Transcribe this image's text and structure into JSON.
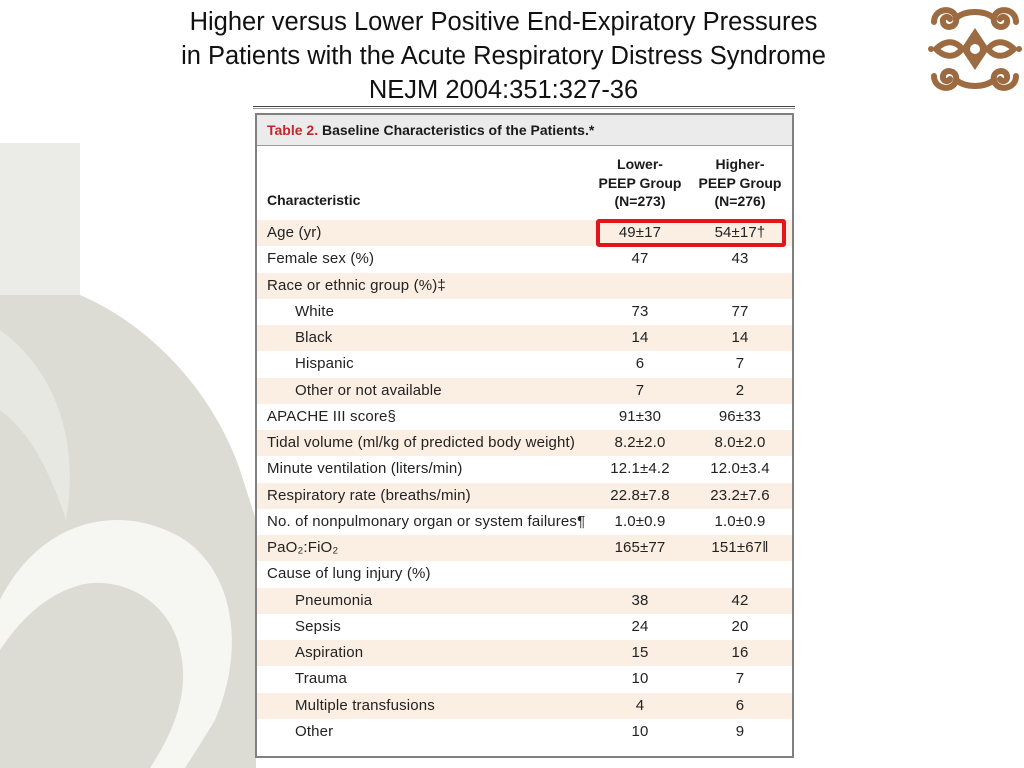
{
  "slide": {
    "title_lines": [
      "Higher versus Lower Positive End-Expiratory Pressures",
      "in Patients with the Acute Respiratory Distress Syndrome",
      "NEJM 2004:351:327-36"
    ]
  },
  "table": {
    "label": "Table 2.",
    "caption": "Baseline Characteristics of the Patients.*",
    "header": {
      "characteristic": "Characteristic",
      "lower": [
        "Lower-",
        "PEEP Group",
        "(N=273)"
      ],
      "higher": [
        "Higher-",
        "PEEP Group",
        "(N=276)"
      ]
    },
    "rows": [
      {
        "label": "Age (yr)",
        "lower": "49±17",
        "higher": "54±17†",
        "highlighted": true
      },
      {
        "label": "Female sex (%)",
        "lower": "47",
        "higher": "43"
      },
      {
        "label": "Race or ethnic group (%)‡",
        "subrows": [
          {
            "label": "White",
            "lower": "73",
            "higher": "77"
          },
          {
            "label": "Black",
            "lower": "14",
            "higher": "14"
          },
          {
            "label": "Hispanic",
            "lower": "6",
            "higher": "7"
          },
          {
            "label": "Other or not available",
            "lower": "7",
            "higher": "2"
          }
        ]
      },
      {
        "label": "APACHE III score§",
        "lower": "91±30",
        "higher": "96±33"
      },
      {
        "label": "Tidal volume (ml/kg of predicted body weight)",
        "lower": "8.2±2.0",
        "higher": "8.0±2.0"
      },
      {
        "label": "Minute ventilation (liters/min)",
        "lower": "12.1±4.2",
        "higher": "12.0±3.4"
      },
      {
        "label": "Respiratory rate (breaths/min)",
        "lower": "22.8±7.8",
        "higher": "23.2±7.6"
      },
      {
        "label": "No. of nonpulmonary organ or system failures¶",
        "lower": "1.0±0.9",
        "higher": "1.0±0.9"
      },
      {
        "label": "PaO₂:FiO₂",
        "lower": "165±77",
        "higher": "151±67‖"
      },
      {
        "label": "Cause of lung injury (%)",
        "subrows": [
          {
            "label": "Pneumonia",
            "lower": "38",
            "higher": "42"
          },
          {
            "label": "Sepsis",
            "lower": "24",
            "higher": "20"
          },
          {
            "label": "Aspiration",
            "lower": "15",
            "higher": "16"
          },
          {
            "label": "Trauma",
            "lower": "10",
            "higher": "7"
          },
          {
            "label": "Multiple transfusions",
            "lower": "4",
            "higher": "6"
          },
          {
            "label": "Other",
            "lower": "10",
            "higher": "9"
          }
        ]
      }
    ]
  },
  "colors": {
    "table_label_red": "#c0282d",
    "highlight_red": "#e3141c",
    "row_tint": "#fbeee2",
    "caption_band": "#ebebeb",
    "logo_brown": "#9c6b41",
    "watermark_grey": "#dcdcd5"
  },
  "icons": {
    "logo": "ornamental-swirl-logo-icon",
    "background": "curved-watermark-shape"
  }
}
